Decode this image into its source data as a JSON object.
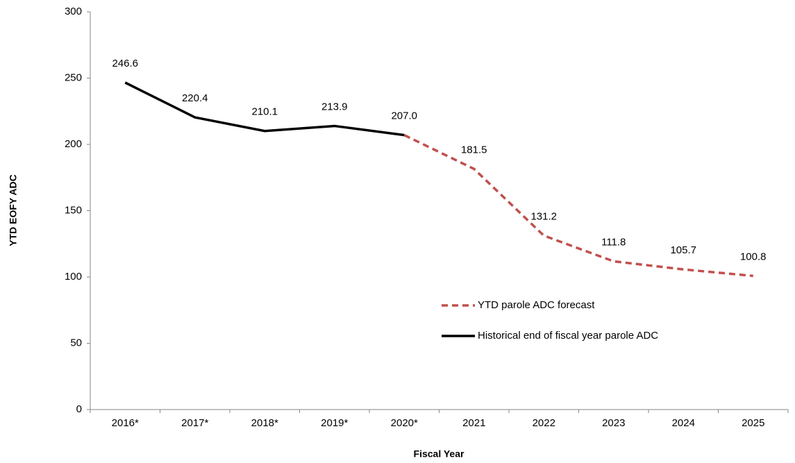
{
  "chart_data": {
    "type": "line",
    "x_label": "Fiscal Year",
    "y_label": "YTD EOFY ADC",
    "categories": [
      "2016*",
      "2017*",
      "2018*",
      "2019*",
      "2020*",
      "2021",
      "2022",
      "2023",
      "2024",
      "2025"
    ],
    "series": [
      {
        "name": "YTD parole ADC forecast",
        "color": "#c0504d",
        "dashed": true,
        "values": [
          null,
          null,
          null,
          null,
          207.0,
          181.5,
          131.2,
          111.8,
          105.7,
          100.8
        ],
        "value_labels": [
          null,
          null,
          null,
          null,
          null,
          "181.5",
          "131.2",
          "111.8",
          "105.7",
          "100.8"
        ]
      },
      {
        "name": "Historical end of fiscal year parole ADC",
        "color": "#000000",
        "dashed": false,
        "values": [
          246.6,
          220.4,
          210.1,
          213.9,
          207.0,
          null,
          null,
          null,
          null,
          null
        ],
        "value_labels": [
          "246.6",
          "220.4",
          "210.1",
          "213.9",
          "207.0",
          null,
          null,
          null,
          null,
          null
        ]
      }
    ],
    "ylim": [
      0,
      300
    ],
    "yticks": [
      0,
      50,
      100,
      150,
      200,
      250,
      300
    ],
    "grid": false
  }
}
